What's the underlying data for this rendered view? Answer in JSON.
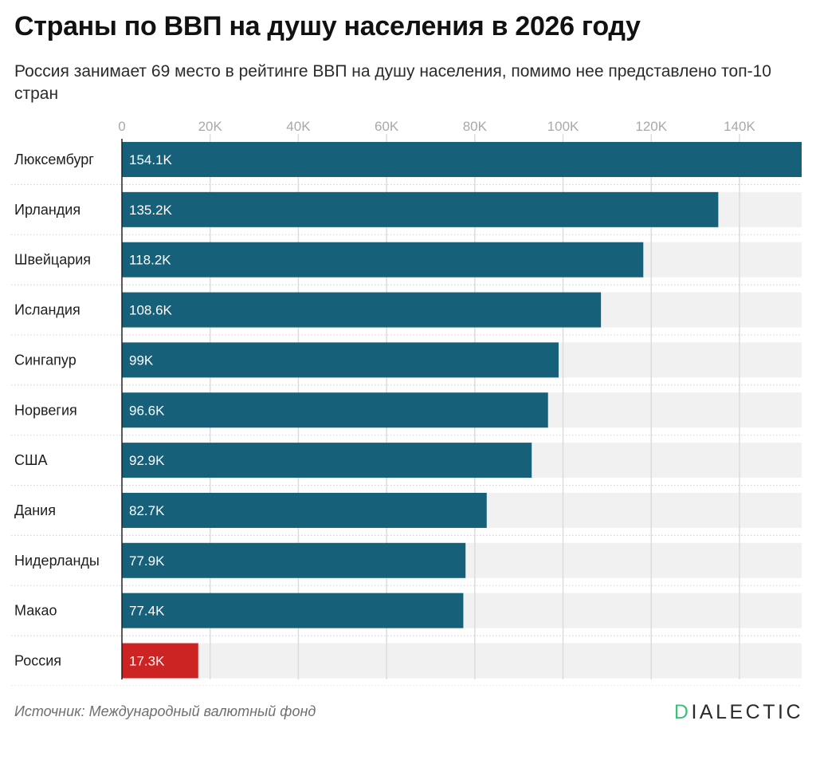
{
  "header": {
    "title": "Страны по ВВП на душу населения в 2026 году",
    "subtitle": "Россия занимает 69 место в рейтинге ВВП на душу населения, помимо нее представлено топ-10 стран"
  },
  "footer": {
    "source": "Источник: Международный валютный фонд",
    "logo_accent": "D",
    "logo_rest": "IALECTIC"
  },
  "colors": {
    "bar": "#17607a",
    "highlight": "#cc2323",
    "track": "#f1f1f1",
    "grid": "#dcdcdc",
    "logo_accent": "#3cc07a"
  },
  "chart_data": {
    "type": "bar",
    "orientation": "horizontal",
    "title": "Страны по ВВП на душу населения в 2026 году",
    "subtitle": "Россия занимает 69 место в рейтинге ВВП на душу населения, помимо нее представлено топ-10 стран",
    "xlim": [
      0,
      154100
    ],
    "x_ticks": [
      0,
      20000,
      40000,
      60000,
      80000,
      100000,
      120000,
      140000
    ],
    "x_tick_labels": [
      "0",
      "20K",
      "40K",
      "60K",
      "80K",
      "100K",
      "120K",
      "140K"
    ],
    "x_axis_position": "top",
    "grid": true,
    "categories": [
      "Люксембург",
      "Ирландия",
      "Швейцария",
      "Исландия",
      "Сингапур",
      "Норвегия",
      "США",
      "Дания",
      "Нидерланды",
      "Макао",
      "Россия"
    ],
    "values": [
      154100,
      135200,
      118200,
      108600,
      99000,
      96600,
      92900,
      82700,
      77900,
      77400,
      17300
    ],
    "value_labels": [
      "154.1K",
      "135.2K",
      "118.2K",
      "108.6K",
      "99K",
      "96.6K",
      "92.9K",
      "82.7K",
      "77.9K",
      "77.4K",
      "17.3K"
    ],
    "highlight": "Россия"
  }
}
